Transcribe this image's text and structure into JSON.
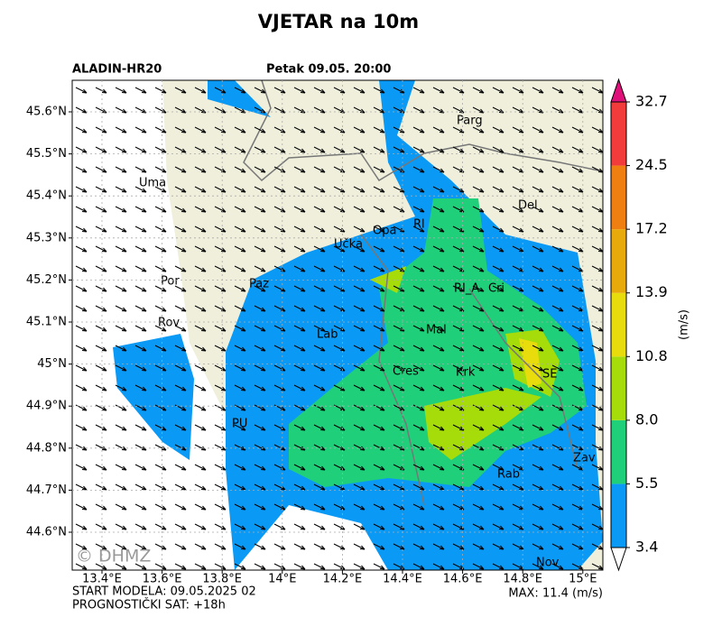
{
  "header": {
    "title": "VJETAR na 10m",
    "model": "ALADIN-HR20",
    "time": "Petak 09.05. 20:00"
  },
  "axes": {
    "lat": [
      "45.6°N",
      "45.5°N",
      "45.4°N",
      "45.3°N",
      "45.2°N",
      "45.1°N",
      "45°N",
      "44.9°N",
      "44.8°N",
      "44.7°N",
      "44.6°N"
    ],
    "lon": [
      "13.4°E",
      "13.6°E",
      "13.8°E",
      "14°E",
      "14.2°E",
      "14.4°E",
      "14.6°E",
      "14.8°E",
      "15°E"
    ]
  },
  "places": [
    "Parg",
    "Uma",
    "Del",
    "Rl",
    "Opa",
    "Učka",
    "Por",
    "Paz",
    "RI_A",
    "Cri",
    "Rov",
    "Mal",
    "Lab",
    "Cres",
    "Krk",
    "SE",
    "PU",
    "Zav",
    "Rab",
    "Nov"
  ],
  "watermark": "© DHMZ",
  "colorbar": {
    "labels": [
      "3.4",
      "5.5",
      "8.0",
      "10.8",
      "13.9",
      "17.2",
      "24.5",
      "32.7"
    ],
    "colors": [
      "#0a9af5",
      "#1fcf7a",
      "#a5dc0a",
      "#e8dc0c",
      "#e8aa0a",
      "#f07f12",
      "#f23c3c"
    ],
    "extend_color": "#e0107a",
    "unit": "(m/s)"
  },
  "footer": {
    "start": "START MODELA: 09.05.2025 02",
    "hour": "PROGNOSTIČKI SAT: +18h",
    "max": "MAX: 11.4 (m/s)"
  }
}
